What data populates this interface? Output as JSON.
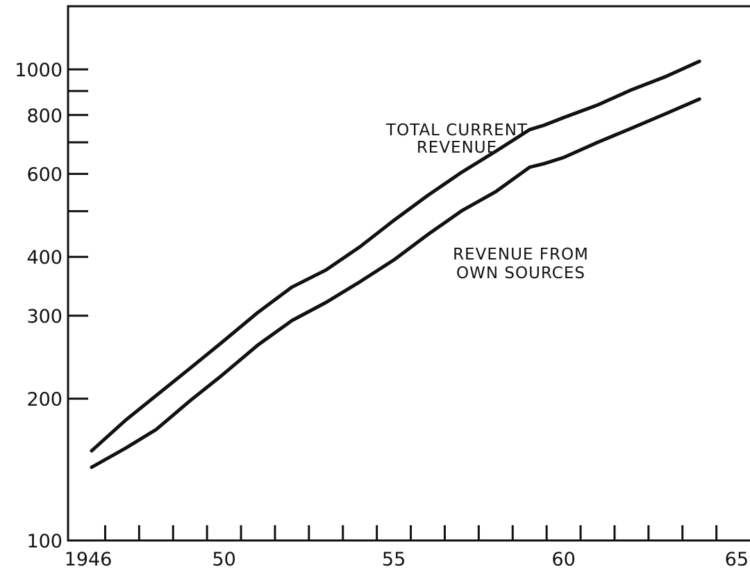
{
  "chart_data": {
    "type": "line",
    "title": "",
    "xlabel": "",
    "ylabel": "",
    "yscale": "log",
    "xlim": [
      1946,
      1965
    ],
    "ylim": [
      100,
      1450
    ],
    "grid": false,
    "x_tick_labels": [
      {
        "value": 1946,
        "label": "1946"
      },
      {
        "value": 1950,
        "label": "50"
      },
      {
        "value": 1955,
        "label": "55"
      },
      {
        "value": 1960,
        "label": "60"
      },
      {
        "value": 1965,
        "label": "65"
      }
    ],
    "x_minor_ticks": [
      1946.5,
      1947.5,
      1948.5,
      1949.5,
      1950.5,
      1951.5,
      1952.5,
      1953.5,
      1954.5,
      1955.5,
      1956.5,
      1957.5,
      1958.5,
      1959.5,
      1960.5,
      1961.5,
      1962.5,
      1963.5,
      1964.5
    ],
    "y_tick_labels": [
      {
        "value": 100,
        "label": "100"
      },
      {
        "value": 200,
        "label": "200"
      },
      {
        "value": 300,
        "label": "300"
      },
      {
        "value": 400,
        "label": "400"
      },
      {
        "value": 600,
        "label": "600"
      },
      {
        "value": 800,
        "label": "800"
      },
      {
        "value": 1000,
        "label": "1000"
      }
    ],
    "y_minor_ticks": [
      500,
      700,
      900
    ],
    "x": [
      1946.1,
      1947.1,
      1948.0,
      1949.0,
      1949.9,
      1951.0,
      1952.0,
      1953.0,
      1954.0,
      1955.0,
      1956.0,
      1957.0,
      1958.0,
      1959.0,
      1959.4,
      1960.0,
      1961.0,
      1962.0,
      1963.0,
      1964.0
    ],
    "series": [
      {
        "name": "TOTAL CURRENT REVENUE",
        "values": [
          155,
          180,
          203,
          232,
          262,
          305,
          345,
          375,
          420,
          478,
          540,
          605,
          670,
          745,
          760,
          790,
          840,
          905,
          965,
          1040
        ]
      },
      {
        "name": "REVENUE FROM OWN SOURCES",
        "values": [
          143,
          157,
          172,
          198,
          223,
          260,
          293,
          320,
          354,
          394,
          446,
          501,
          550,
          620,
          630,
          650,
          700,
          750,
          805,
          865
        ]
      }
    ],
    "annotations": [
      {
        "lines": [
          "TOTAL CURRENT",
          "REVENUE"
        ],
        "x": 1957.5,
        "y": 810
      },
      {
        "lines": [
          "REVENUE FROM",
          "OWN SOURCES"
        ],
        "x": 1958.2,
        "y": 430
      }
    ]
  }
}
